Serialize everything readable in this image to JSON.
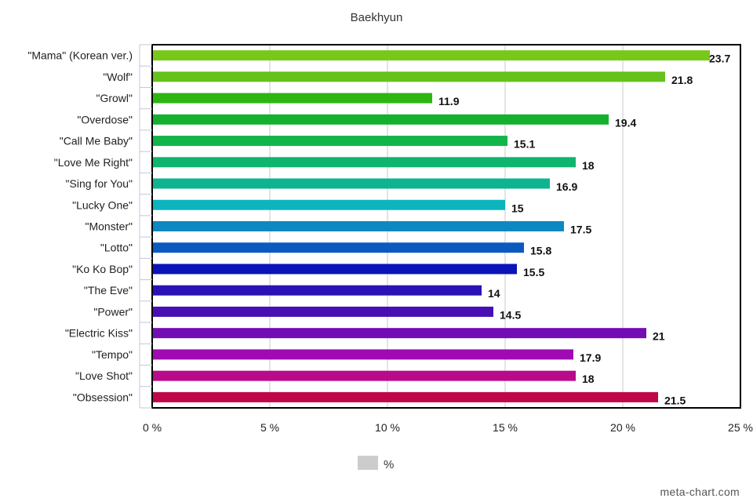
{
  "chart_data": {
    "type": "bar",
    "orientation": "horizontal",
    "title": "Baekhyun",
    "xlabel": "",
    "ylabel": "",
    "xlim": [
      0,
      25
    ],
    "x_ticks": [
      "0 %",
      "5 %",
      "10 %",
      "15 %",
      "20 %",
      "25 %"
    ],
    "x_tick_values": [
      0,
      5,
      10,
      15,
      20,
      25
    ],
    "grid": "vertical",
    "legend": {
      "position": "bottom-center",
      "entries": [
        "%"
      ],
      "swatch_color": "#cccccc"
    },
    "categories": [
      "\"Mama\" (Korean ver.)",
      "\"Wolf\"",
      "\"Growl\"",
      "\"Overdose\"",
      "\"Call Me Baby\"",
      "\"Love Me Right\"",
      "\"Sing for You\"",
      "\"Lucky One\"",
      "\"Monster\"",
      "\"Lotto\"",
      "\"Ko Ko Bop\"",
      "\"The Eve\"",
      "\"Power\"",
      "\"Electric Kiss\"",
      "\"Tempo\"",
      "\"Love Shot\"",
      "\"Obsession\""
    ],
    "values": [
      23.7,
      21.8,
      11.9,
      19.4,
      15.1,
      18,
      16.9,
      15,
      17.5,
      15.8,
      15.5,
      14,
      14.5,
      21,
      17.9,
      18,
      21.5
    ],
    "value_labels": [
      "23.7",
      "21.8",
      "11.9",
      "19.4",
      "15.1",
      "18",
      "16.9",
      "15",
      "17.5",
      "15.8",
      "15.5",
      "14",
      "14.5",
      "21",
      "17.9",
      "18",
      "21.5"
    ],
    "colors": [
      "#78c81a",
      "#66c21a",
      "#2db612",
      "#16b030",
      "#11b54a",
      "#0eb56e",
      "#0eb38f",
      "#0cb5bd",
      "#0e88c0",
      "#0b5ac0",
      "#0a14b8",
      "#2a12b4",
      "#4810b4",
      "#720cb4",
      "#a00ab4",
      "#b80a8a",
      "#c0064a"
    ]
  },
  "watermark": "meta-chart.com"
}
